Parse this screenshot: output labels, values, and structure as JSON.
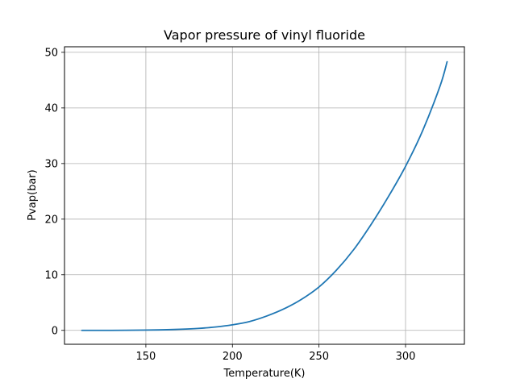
{
  "chart_data": {
    "type": "line",
    "title": "Vapor pressure of vinyl fluoride",
    "xlabel": "Temperature(K)",
    "ylabel": "Pvap(bar)",
    "xlim": [
      103,
      334
    ],
    "ylim": [
      -2.5,
      51
    ],
    "xticks": [
      150,
      200,
      250,
      300
    ],
    "yticks": [
      0,
      10,
      20,
      30,
      40,
      50
    ],
    "grid": true,
    "series": [
      {
        "color": "#1f77b4",
        "x": [
          113,
          130,
          150,
          160,
          170,
          180,
          190,
          200,
          210,
          220,
          230,
          240,
          250,
          260,
          270,
          280,
          290,
          300,
          310,
          320,
          324
        ],
        "y": [
          0.0,
          0.0,
          0.05,
          0.1,
          0.2,
          0.35,
          0.6,
          1.0,
          1.6,
          2.6,
          3.9,
          5.6,
          7.8,
          10.8,
          14.5,
          19.0,
          24.0,
          29.5,
          36.0,
          44.0,
          48.3
        ]
      }
    ]
  }
}
